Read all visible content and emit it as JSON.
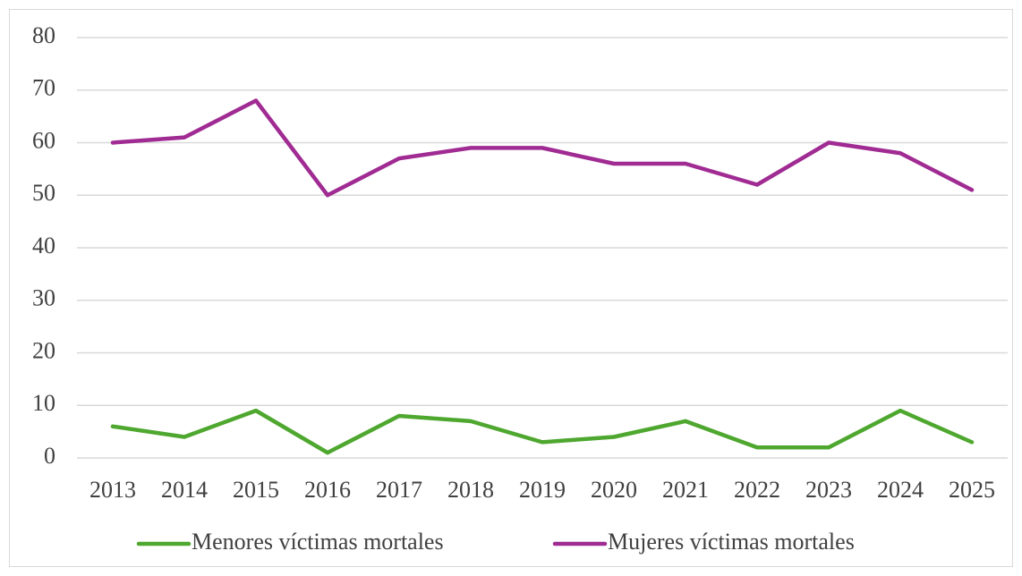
{
  "chart_data": {
    "type": "line",
    "categories": [
      "2013",
      "2014",
      "2015",
      "2016",
      "2017",
      "2018",
      "2019",
      "2020",
      "2021",
      "2022",
      "2023",
      "2024",
      "2025"
    ],
    "series": [
      {
        "name": "Menores víctimas mortales",
        "color": "#4ea72e",
        "values": [
          6,
          4,
          9,
          1,
          8,
          7,
          3,
          4,
          7,
          2,
          2,
          9,
          3
        ]
      },
      {
        "name": "Mujeres víctimas mortales",
        "color": "#a02b93",
        "values": [
          60,
          61,
          68,
          50,
          57,
          59,
          59,
          56,
          56,
          52,
          60,
          58,
          51
        ]
      }
    ],
    "ylim": [
      0,
      80
    ],
    "yticks": [
      0,
      10,
      20,
      30,
      40,
      50,
      60,
      70,
      80
    ],
    "grid": true,
    "legend": "bottom"
  }
}
